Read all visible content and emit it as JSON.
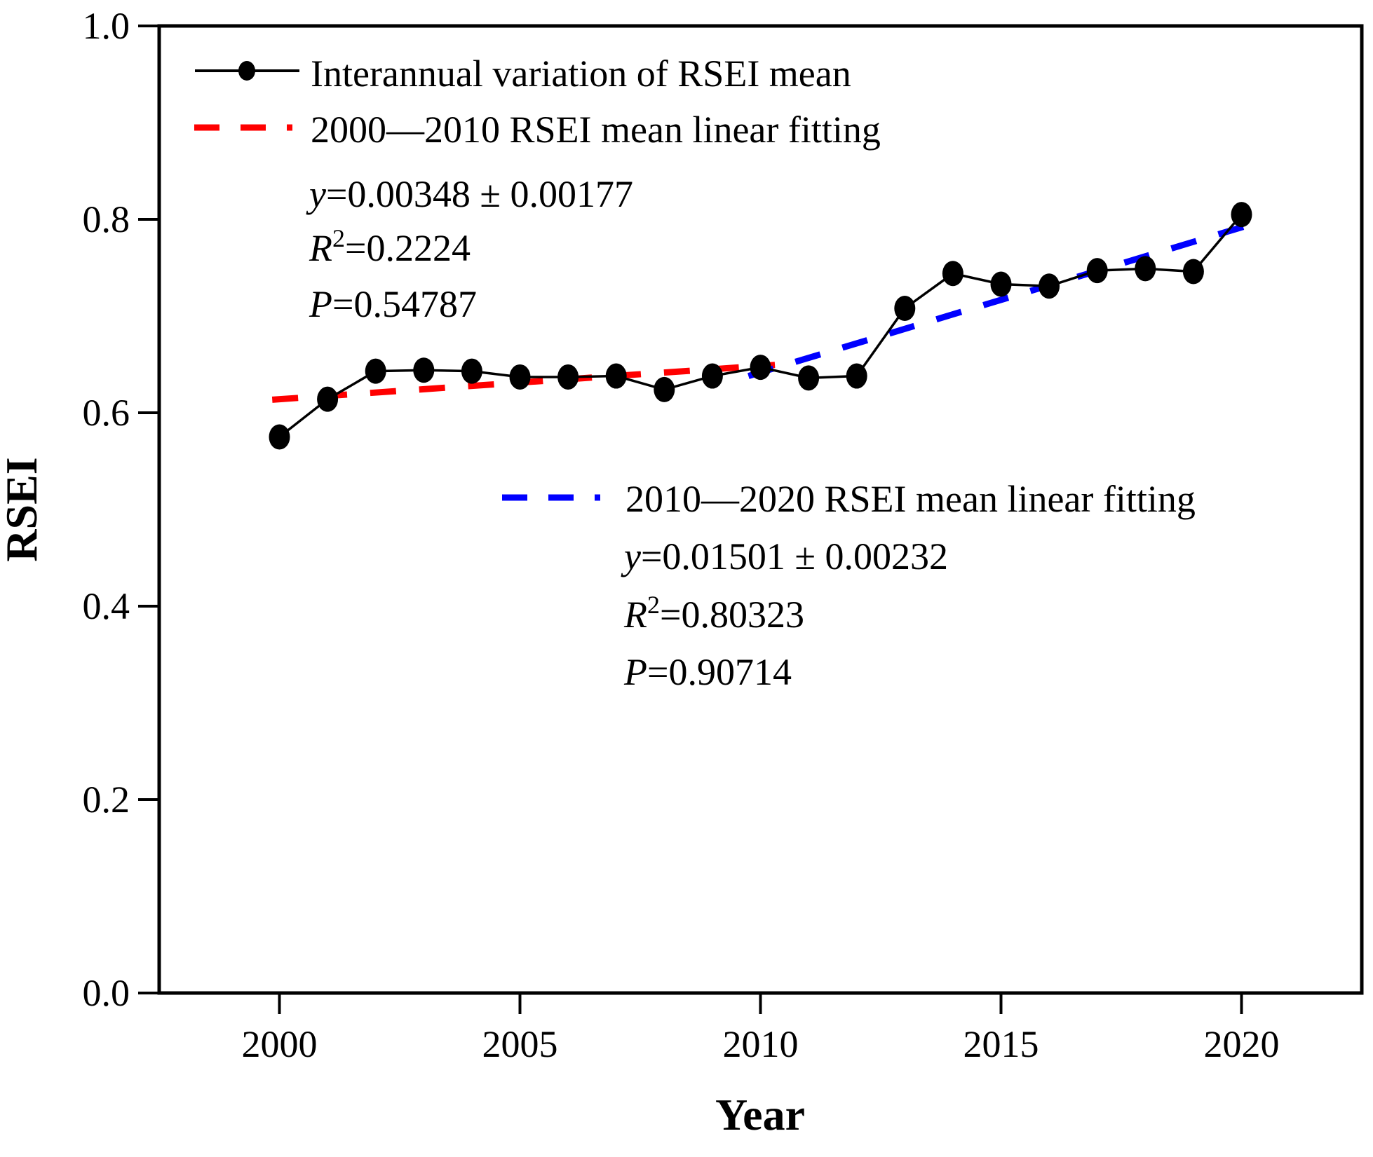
{
  "colors": {
    "series": "#000000",
    "fit1": "#ff0000",
    "fit2": "#0000ff",
    "axis": "#000000"
  },
  "legend": {
    "series_label": "Interannual variation of RSEI mean",
    "fit1_label": "2000—2010 RSEI mean linear fitting",
    "fit2_label": "2010—2020 RSEI mean linear fitting"
  },
  "annotations": {
    "fit1": {
      "var": "y",
      "eq": "=0.00348 ± 0.00177",
      "r2_var": "R",
      "r2_sup": "2",
      "r2_rest": "=0.2224",
      "p_var": "P",
      "p_rest": "=0.54787"
    },
    "fit2": {
      "var": "y",
      "eq": "=0.01501 ± 0.00232",
      "r2_var": "R",
      "r2_sup": "2",
      "r2_rest": "=0.80323",
      "p_var": "P",
      "p_rest": "=0.90714"
    }
  },
  "chart_data": {
    "type": "line",
    "title": "",
    "xlabel": "Year",
    "ylabel": "RSEI",
    "xlim": [
      1997.5,
      2022.5
    ],
    "ylim": [
      0,
      1
    ],
    "grid": false,
    "legend_position": "upper-left inside",
    "x_ticks": [
      2000,
      2005,
      2010,
      2015,
      2020
    ],
    "y_ticks": [
      0.0,
      0.2,
      0.4,
      0.6,
      0.8,
      1.0
    ],
    "y_tick_labels": [
      "0.0",
      "0.2",
      "0.4",
      "0.6",
      "0.8",
      "1.0"
    ],
    "series": [
      {
        "name": "Interannual variation of RSEI mean",
        "marker": "filled-circle",
        "color": "#000000",
        "x": [
          2000,
          2001,
          2002,
          2003,
          2004,
          2005,
          2006,
          2007,
          2008,
          2009,
          2010,
          2011,
          2012,
          2013,
          2014,
          2015,
          2016,
          2017,
          2018,
          2019,
          2020
        ],
        "values": [
          0.575,
          0.614,
          0.643,
          0.644,
          0.643,
          0.637,
          0.637,
          0.638,
          0.624,
          0.638,
          0.647,
          0.636,
          0.638,
          0.708,
          0.744,
          0.733,
          0.731,
          0.747,
          0.749,
          0.746,
          0.805
        ]
      }
    ],
    "fits": [
      {
        "name": "2000—2010 RSEI mean linear fitting",
        "color": "#ff0000",
        "style": "dashed",
        "slope": 0.00348,
        "slope_err": 0.00177,
        "r2": 0.2224,
        "p": 0.54787,
        "x1": 1999.85,
        "y1": 0.6135,
        "x2": 2010.3,
        "y2": 0.6495
      },
      {
        "name": "2010—2020 RSEI mean linear fitting",
        "color": "#0000ff",
        "style": "dashed",
        "slope": 0.01501,
        "slope_err": 0.00232,
        "r2": 0.80323,
        "p": 0.90714,
        "x1": 2009.75,
        "y1": 0.638,
        "x2": 2020.25,
        "y2": 0.7955
      }
    ]
  }
}
